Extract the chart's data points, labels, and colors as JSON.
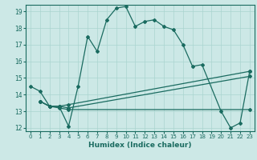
{
  "xlabel": "Humidex (Indice chaleur)",
  "xlim": [
    -0.5,
    23.5
  ],
  "ylim": [
    11.8,
    19.4
  ],
  "yticks": [
    12,
    13,
    14,
    15,
    16,
    17,
    18,
    19
  ],
  "xticks": [
    0,
    1,
    2,
    3,
    4,
    5,
    6,
    7,
    8,
    9,
    10,
    11,
    12,
    13,
    14,
    15,
    16,
    17,
    18,
    19,
    20,
    21,
    22,
    23
  ],
  "bg_color": "#cce8e6",
  "line_color": "#1a6b60",
  "grid_color": "#aad4d0",
  "series1": {
    "x": [
      0,
      1,
      2,
      3,
      4,
      5,
      6,
      7,
      8,
      9,
      10,
      11,
      12,
      13,
      14,
      15,
      16,
      17,
      18,
      20,
      21,
      22,
      23
    ],
    "y": [
      14.5,
      14.2,
      13.3,
      13.3,
      12.1,
      14.5,
      17.5,
      16.6,
      18.5,
      19.2,
      19.3,
      18.1,
      18.4,
      18.5,
      18.1,
      17.9,
      17.0,
      15.7,
      15.8,
      13.0,
      12.0,
      12.3,
      15.4
    ]
  },
  "series2": {
    "x": [
      1,
      2,
      3,
      4,
      23
    ],
    "y": [
      13.6,
      13.3,
      13.3,
      13.4,
      15.4
    ]
  },
  "series3": {
    "x": [
      1,
      2,
      3,
      4,
      23
    ],
    "y": [
      13.6,
      13.3,
      13.3,
      13.2,
      15.1
    ]
  },
  "series4": {
    "x": [
      1,
      2,
      3,
      4,
      23
    ],
    "y": [
      13.6,
      13.3,
      13.2,
      13.1,
      13.1
    ]
  }
}
